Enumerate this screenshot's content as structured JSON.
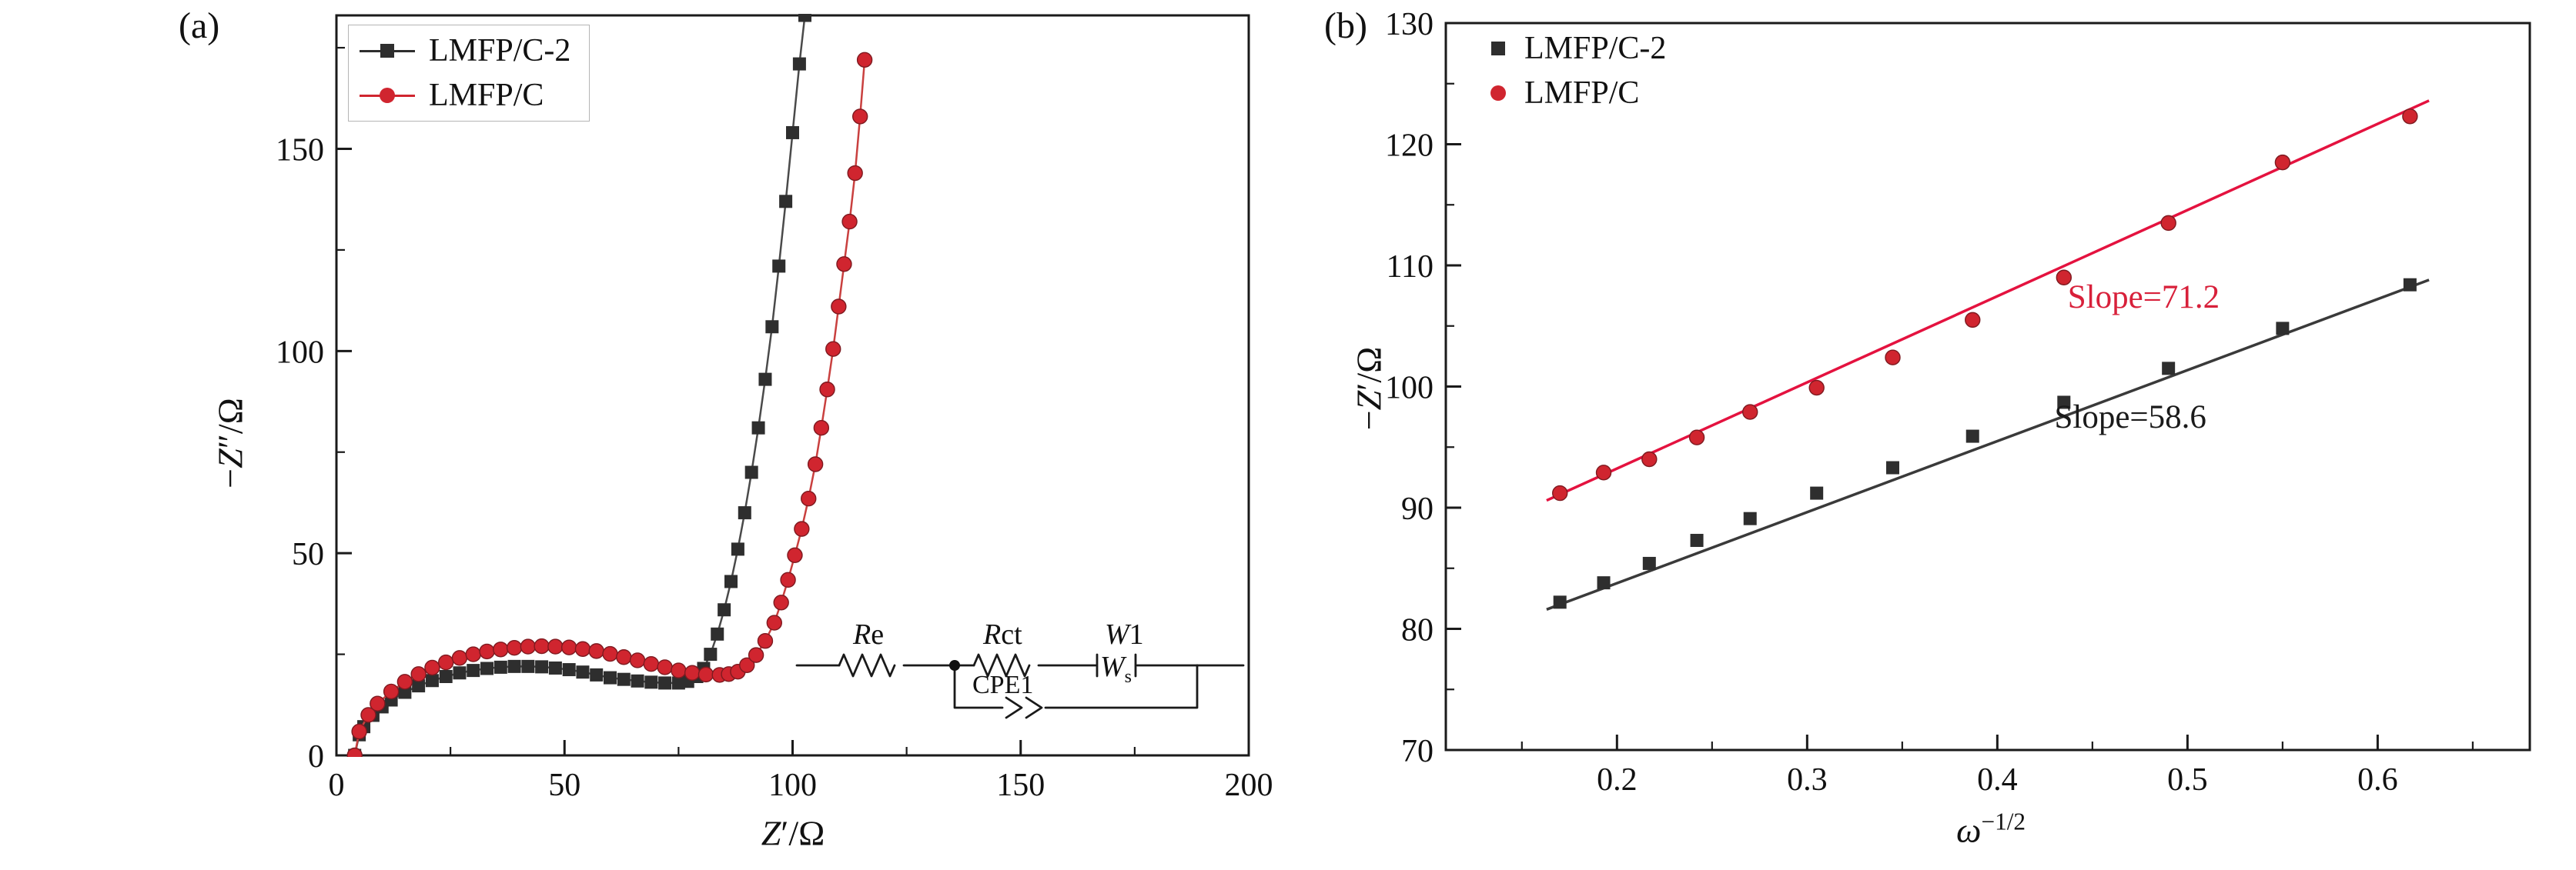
{
  "figure": {
    "background": "#ffffff"
  },
  "panel_a": {
    "tag": "(a)",
    "x_axis": {
      "pre": "",
      "var": "Z",
      "post": "′/Ω"
    },
    "y_axis": {
      "pre": "−",
      "var": "Z",
      "post": "″/Ω"
    },
    "legend": [
      {
        "label": "LMFP/C-2",
        "marker": "square",
        "color": "#2e2e2e"
      },
      {
        "label": "LMFP/C",
        "marker": "circle",
        "color": "#d0252f"
      }
    ],
    "circuit": {
      "r1_sym": "R",
      "r1_sub": "e",
      "r2_sym": "R",
      "r2_sub": "ct",
      "w_sym": "W",
      "w_sub": "1",
      "w_glyph": "W",
      "w_glyph_sub": "s",
      "cpe": "CPE1"
    }
  },
  "panel_b": {
    "tag": "(b)",
    "x_axis": {
      "var": "ω",
      "sup": "−1/2"
    },
    "y_axis": {
      "pre": "−",
      "var": "Z",
      "post": "′/Ω"
    },
    "legend": [
      {
        "label": "LMFP/C-2",
        "marker": "square",
        "color": "#2e2e2e"
      },
      {
        "label": "LMFP/C",
        "marker": "circle",
        "color": "#d0252f"
      }
    ]
  },
  "chart_data": [
    {
      "type": "scatter",
      "panel": "a",
      "title": "",
      "xlabel": "Z′/Ω",
      "ylabel": "−Z″/Ω",
      "xlim": [
        0,
        200
      ],
      "ylim": [
        0,
        183
      ],
      "xticks": [
        0,
        50,
        100,
        150,
        200
      ],
      "xtick_labels": [
        "0",
        "50",
        "100",
        "150",
        "200"
      ],
      "xticks_minor": [
        25,
        75,
        125,
        175
      ],
      "yticks": [
        0,
        50,
        100,
        150
      ],
      "ytick_labels": [
        "0",
        "50",
        "100",
        "150"
      ],
      "yticks_minor": [
        25,
        75,
        125,
        175
      ],
      "grid": false,
      "legend_position": "top-left",
      "series": [
        {
          "name": "LMFP/C-2",
          "marker": "square",
          "color": "#2e2e2e",
          "line_color": "#4a4a4a",
          "connect": true,
          "points": [
            [
              4,
              0
            ],
            [
              5,
              5.1
            ],
            [
              6,
              7.1
            ],
            [
              8,
              9.9
            ],
            [
              10,
              12
            ],
            [
              12,
              13.7
            ],
            [
              15,
              15.6
            ],
            [
              18,
              17.2
            ],
            [
              21,
              18.5
            ],
            [
              24,
              19.5
            ],
            [
              27,
              20.4
            ],
            [
              30,
              21
            ],
            [
              33,
              21.5
            ],
            [
              36,
              21.8
            ],
            [
              39,
              22
            ],
            [
              42,
              22
            ],
            [
              45,
              21.9
            ],
            [
              48,
              21.6
            ],
            [
              51,
              21.2
            ],
            [
              54,
              20.6
            ],
            [
              57,
              19.9
            ],
            [
              60,
              19.2
            ],
            [
              63,
              18.8
            ],
            [
              66,
              18.4
            ],
            [
              69,
              18.1
            ],
            [
              72,
              17.9
            ],
            [
              75,
              17.9
            ],
            [
              77,
              18.3
            ],
            [
              79,
              19.5
            ],
            [
              80.5,
              21.5
            ],
            [
              82,
              25
            ],
            [
              83.5,
              30
            ],
            [
              85,
              36
            ],
            [
              86.5,
              43
            ],
            [
              88,
              51
            ],
            [
              89.5,
              60
            ],
            [
              91,
              70
            ],
            [
              92.5,
              81
            ],
            [
              94,
              93
            ],
            [
              95.5,
              106
            ],
            [
              97,
              121
            ],
            [
              98.5,
              137
            ],
            [
              100,
              154
            ],
            [
              101.5,
              171
            ],
            [
              102.7,
              183
            ]
          ]
        },
        {
          "name": "LMFP/C",
          "marker": "circle",
          "color": "#d0252f",
          "line_color": "#c9403f",
          "connect": true,
          "points": [
            [
              4,
              0
            ],
            [
              5,
              5.9
            ],
            [
              7,
              10
            ],
            [
              9,
              12.8
            ],
            [
              12,
              15.8
            ],
            [
              15,
              18.2
            ],
            [
              18,
              20.1
            ],
            [
              21,
              21.7
            ],
            [
              24,
              23
            ],
            [
              27,
              24.1
            ],
            [
              30,
              25
            ],
            [
              33,
              25.7
            ],
            [
              36,
              26.2
            ],
            [
              39,
              26.6
            ],
            [
              42,
              26.9
            ],
            [
              45,
              27
            ],
            [
              48,
              26.9
            ],
            [
              51,
              26.7
            ],
            [
              54,
              26.3
            ],
            [
              57,
              25.8
            ],
            [
              60,
              25.1
            ],
            [
              63,
              24.3
            ],
            [
              66,
              23.5
            ],
            [
              69,
              22.6
            ],
            [
              72,
              21.8
            ],
            [
              75,
              21
            ],
            [
              78,
              20.4
            ],
            [
              81,
              20
            ],
            [
              84,
              19.9
            ],
            [
              86,
              20.1
            ],
            [
              88,
              20.7
            ],
            [
              90,
              22.3
            ],
            [
              92,
              24.8
            ],
            [
              94,
              28.3
            ],
            [
              96,
              32.8
            ],
            [
              97.5,
              37.8
            ],
            [
              99,
              43.4
            ],
            [
              100.5,
              49.5
            ],
            [
              102,
              56
            ],
            [
              103.5,
              63.5
            ],
            [
              105,
              72
            ],
            [
              106.3,
              81
            ],
            [
              107.6,
              90.5
            ],
            [
              108.9,
              100.5
            ],
            [
              110.1,
              111
            ],
            [
              111.3,
              121.5
            ],
            [
              112.5,
              132
            ],
            [
              113.7,
              144
            ],
            [
              114.8,
              158
            ],
            [
              115.8,
              172
            ]
          ]
        }
      ]
    },
    {
      "type": "scatter",
      "panel": "b",
      "title": "",
      "xlabel": "ω^(−1/2)",
      "ylabel": "−Z′/Ω",
      "xlim": [
        0.11,
        0.68
      ],
      "ylim": [
        70,
        130
      ],
      "xticks": [
        0.2,
        0.3,
        0.4,
        0.5,
        0.6
      ],
      "xtick_labels": [
        "0.2",
        "0.3",
        "0.4",
        "0.5",
        "0.6"
      ],
      "xticks_minor": [
        0.15,
        0.25,
        0.35,
        0.45,
        0.55,
        0.65
      ],
      "yticks": [
        70,
        80,
        90,
        100,
        110,
        120,
        130
      ],
      "ytick_labels": [
        "70",
        "80",
        "90",
        "100",
        "110",
        "120",
        "130"
      ],
      "yticks_minor": [
        75,
        85,
        95,
        105,
        115,
        125
      ],
      "grid": false,
      "legend_position": "top-left",
      "series": [
        {
          "name": "LMFP/C-2",
          "marker": "square",
          "color": "#2e2e2e",
          "connect": false,
          "points": [
            [
              0.17,
              82.2
            ],
            [
              0.193,
              83.8
            ],
            [
              0.217,
              85.4
            ],
            [
              0.242,
              87.3
            ],
            [
              0.27,
              89.1
            ],
            [
              0.305,
              91.2
            ],
            [
              0.345,
              93.3
            ],
            [
              0.387,
              95.9
            ],
            [
              0.435,
              98.7
            ],
            [
              0.49,
              101.5
            ],
            [
              0.55,
              104.8
            ],
            [
              0.617,
              108.4
            ]
          ]
        },
        {
          "name": "LMFP/C",
          "marker": "circle",
          "color": "#d0252f",
          "connect": false,
          "points": [
            [
              0.17,
              91.2
            ],
            [
              0.193,
              92.9
            ],
            [
              0.217,
              94
            ],
            [
              0.242,
              95.8
            ],
            [
              0.27,
              97.9
            ],
            [
              0.305,
              99.9
            ],
            [
              0.345,
              102.4
            ],
            [
              0.387,
              105.5
            ],
            [
              0.435,
              109
            ],
            [
              0.49,
              113.5
            ],
            [
              0.55,
              118.5
            ],
            [
              0.617,
              122.3
            ]
          ]
        }
      ],
      "fit_lines": [
        {
          "for": "LMFP/C-2",
          "color": "#3a3a3a",
          "slope": 58.6,
          "from": [
            0.163,
            81.6
          ],
          "to": [
            0.627,
            108.8
          ]
        },
        {
          "for": "LMFP/C",
          "color": "#e4123f",
          "slope": 71.2,
          "from": [
            0.163,
            90.6
          ],
          "to": [
            0.627,
            123.6
          ]
        }
      ],
      "annotations": [
        {
          "text": "Slope=71.2",
          "color": "#d8203a",
          "x": 0.437,
          "y": 106.5
        },
        {
          "text": "Slope=58.6",
          "color": "#1a1a1a",
          "x": 0.43,
          "y": 96.6
        }
      ]
    }
  ]
}
